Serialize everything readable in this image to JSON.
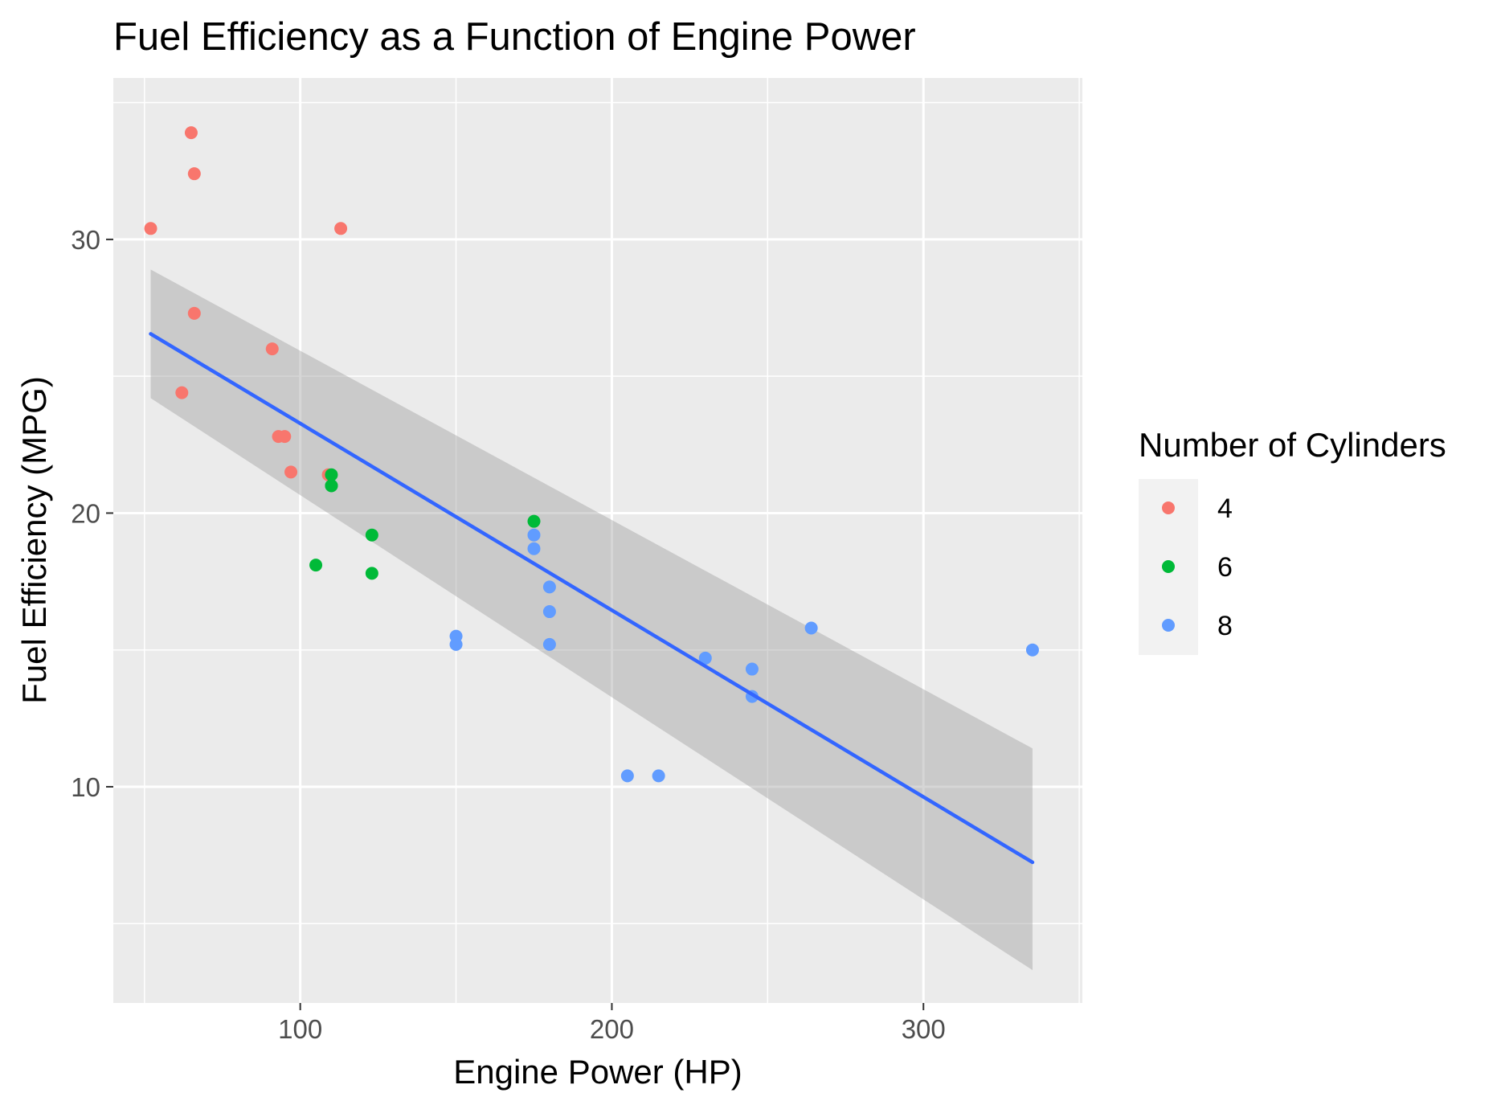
{
  "chart_data": {
    "type": "scatter",
    "title": "Fuel Efficiency as a Function of Engine Power",
    "xlabel": "Engine Power (HP)",
    "ylabel": "Fuel Efficiency (MPG)",
    "xlim": [
      40,
      351
    ],
    "ylim": [
      2.1,
      35.9
    ],
    "x_ticks": [
      100,
      200,
      300
    ],
    "y_ticks": [
      10,
      20,
      30
    ],
    "x_minor": [
      50,
      150,
      250,
      350
    ],
    "y_minor": [
      5,
      15,
      25,
      35
    ],
    "grid": true,
    "legend": {
      "title": "Number of Cylinders",
      "position": "right",
      "entries": [
        {
          "label": "4",
          "color": "#F8766D"
        },
        {
          "label": "6",
          "color": "#00BA38"
        },
        {
          "label": "8",
          "color": "#619CFF"
        }
      ]
    },
    "series": [
      {
        "name": "4",
        "color": "#F8766D",
        "points": [
          [
            93,
            22.8
          ],
          [
            62,
            24.4
          ],
          [
            95,
            22.8
          ],
          [
            66,
            32.4
          ],
          [
            52,
            30.4
          ],
          [
            65,
            33.9
          ],
          [
            97,
            21.5
          ],
          [
            66,
            27.3
          ],
          [
            91,
            26.0
          ],
          [
            113,
            30.4
          ],
          [
            109,
            21.4
          ]
        ]
      },
      {
        "name": "6",
        "color": "#00BA38",
        "points": [
          [
            110,
            21.0
          ],
          [
            110,
            21.0
          ],
          [
            110,
            21.4
          ],
          [
            105,
            18.1
          ],
          [
            123,
            19.2
          ],
          [
            123,
            17.8
          ],
          [
            175,
            19.7
          ]
        ]
      },
      {
        "name": "8",
        "color": "#619CFF",
        "points": [
          [
            175,
            18.7
          ],
          [
            245,
            14.3
          ],
          [
            180,
            16.4
          ],
          [
            180,
            17.3
          ],
          [
            180,
            15.2
          ],
          [
            205,
            10.4
          ],
          [
            215,
            10.4
          ],
          [
            230,
            14.7
          ],
          [
            150,
            15.5
          ],
          [
            150,
            15.2
          ],
          [
            245,
            13.3
          ],
          [
            175,
            19.2
          ],
          [
            264,
            15.8
          ],
          [
            335,
            15.0
          ]
        ]
      }
    ],
    "trend_line": {
      "method": "linear",
      "color": "#3366FF",
      "x": [
        52,
        335
      ],
      "y": [
        26.55,
        7.24
      ],
      "ci_lower": [
        24.2,
        3.3
      ],
      "ci_upper": [
        28.9,
        11.4
      ]
    }
  }
}
